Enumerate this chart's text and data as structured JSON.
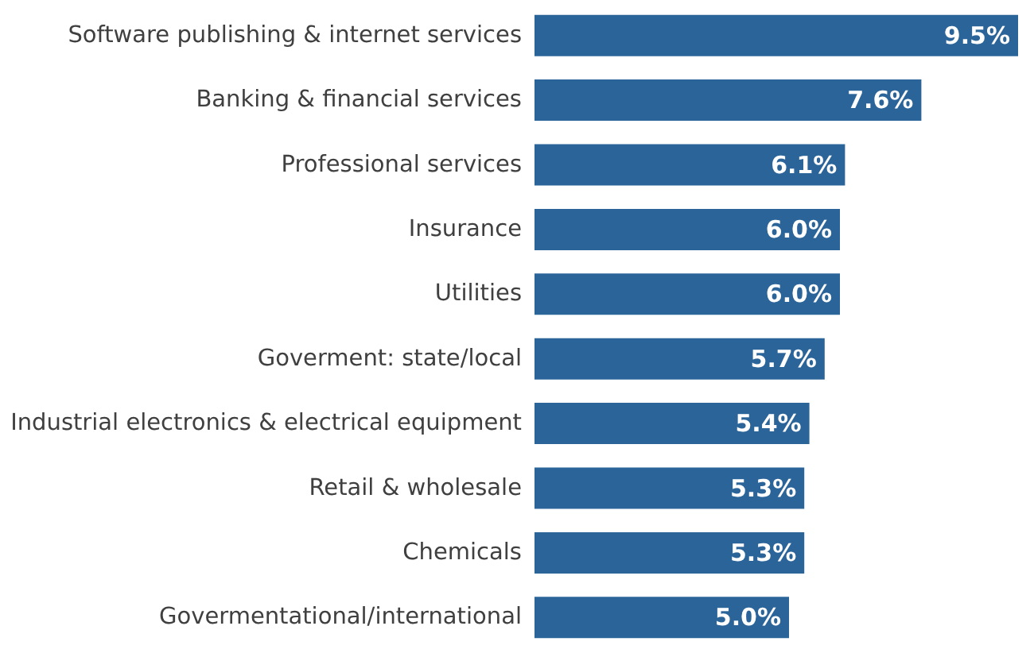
{
  "chart_data": {
    "type": "bar",
    "orientation": "horizontal",
    "categories": [
      "Software publishing & internet services",
      "Banking & financial services",
      "Professional services",
      "Insurance",
      "Utilities",
      "Goverment: state/local",
      "Industrial electronics & electrical equipment",
      "Retail & wholesale",
      "Chemicals",
      "Govermentational/international"
    ],
    "values": [
      9.5,
      7.6,
      6.1,
      6.0,
      6.0,
      5.7,
      5.4,
      5.3,
      5.3,
      5.0
    ],
    "value_labels": [
      "9.5%",
      "7.6%",
      "6.1%",
      "6.0%",
      "6.0%",
      "5.7%",
      "5.4%",
      "5.3%",
      "5.3%",
      "5.0%"
    ],
    "color": "#2b6499"
  }
}
